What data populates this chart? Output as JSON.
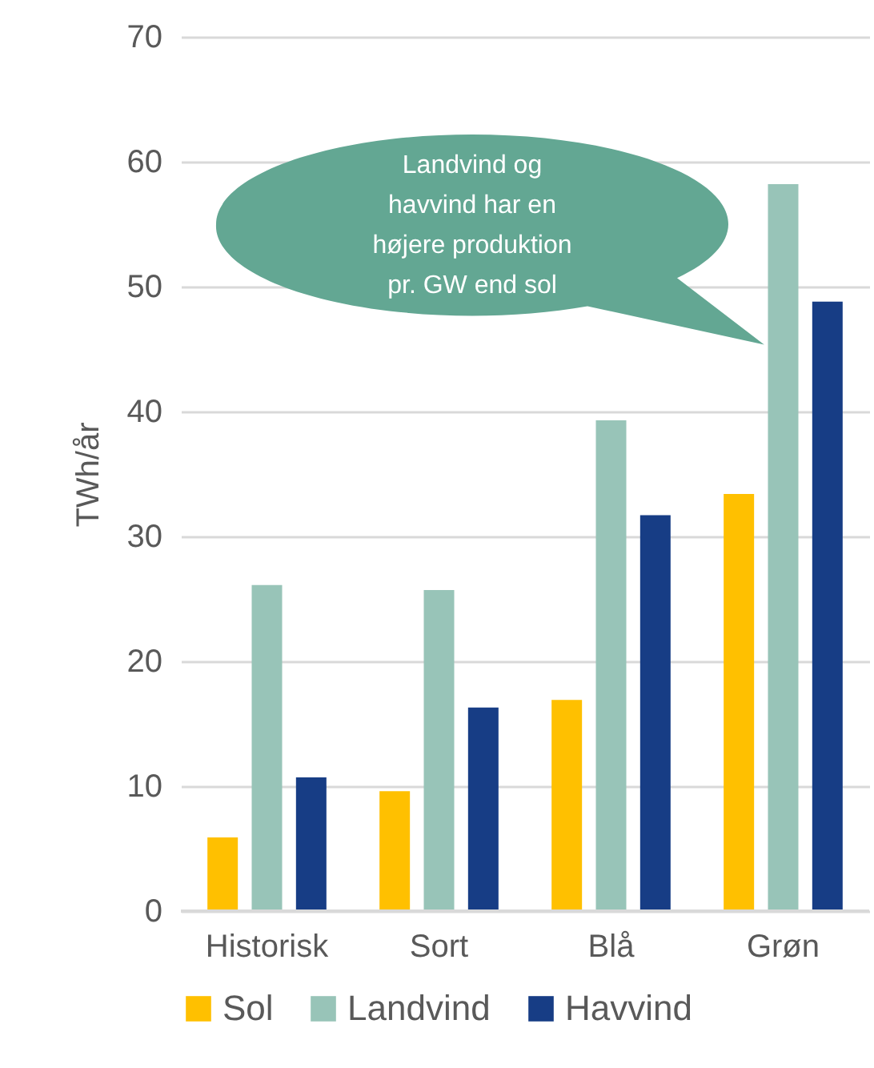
{
  "chart_data": {
    "type": "bar",
    "ylabel": "TWh/år",
    "categories": [
      "Historisk",
      "Sort",
      "Blå",
      "Grøn"
    ],
    "series": [
      {
        "name": "Sol",
        "color": "#ffc000",
        "values": [
          5.9,
          9.6,
          16.9,
          33.4
        ]
      },
      {
        "name": "Landvind",
        "color": "#98c4b8",
        "values": [
          26.1,
          25.7,
          39.3,
          58.2
        ]
      },
      {
        "name": "Havvind",
        "color": "#173d85",
        "values": [
          10.7,
          16.3,
          31.7,
          48.8
        ]
      }
    ],
    "ylim": [
      0,
      70
    ],
    "yticks": [
      0,
      10,
      20,
      30,
      40,
      50,
      60,
      70
    ],
    "grid": "y",
    "legend": "bottom",
    "annotations": [
      "Landvind og\nhavvind har en\nhøjere produktion\npr. GW end sol"
    ]
  }
}
